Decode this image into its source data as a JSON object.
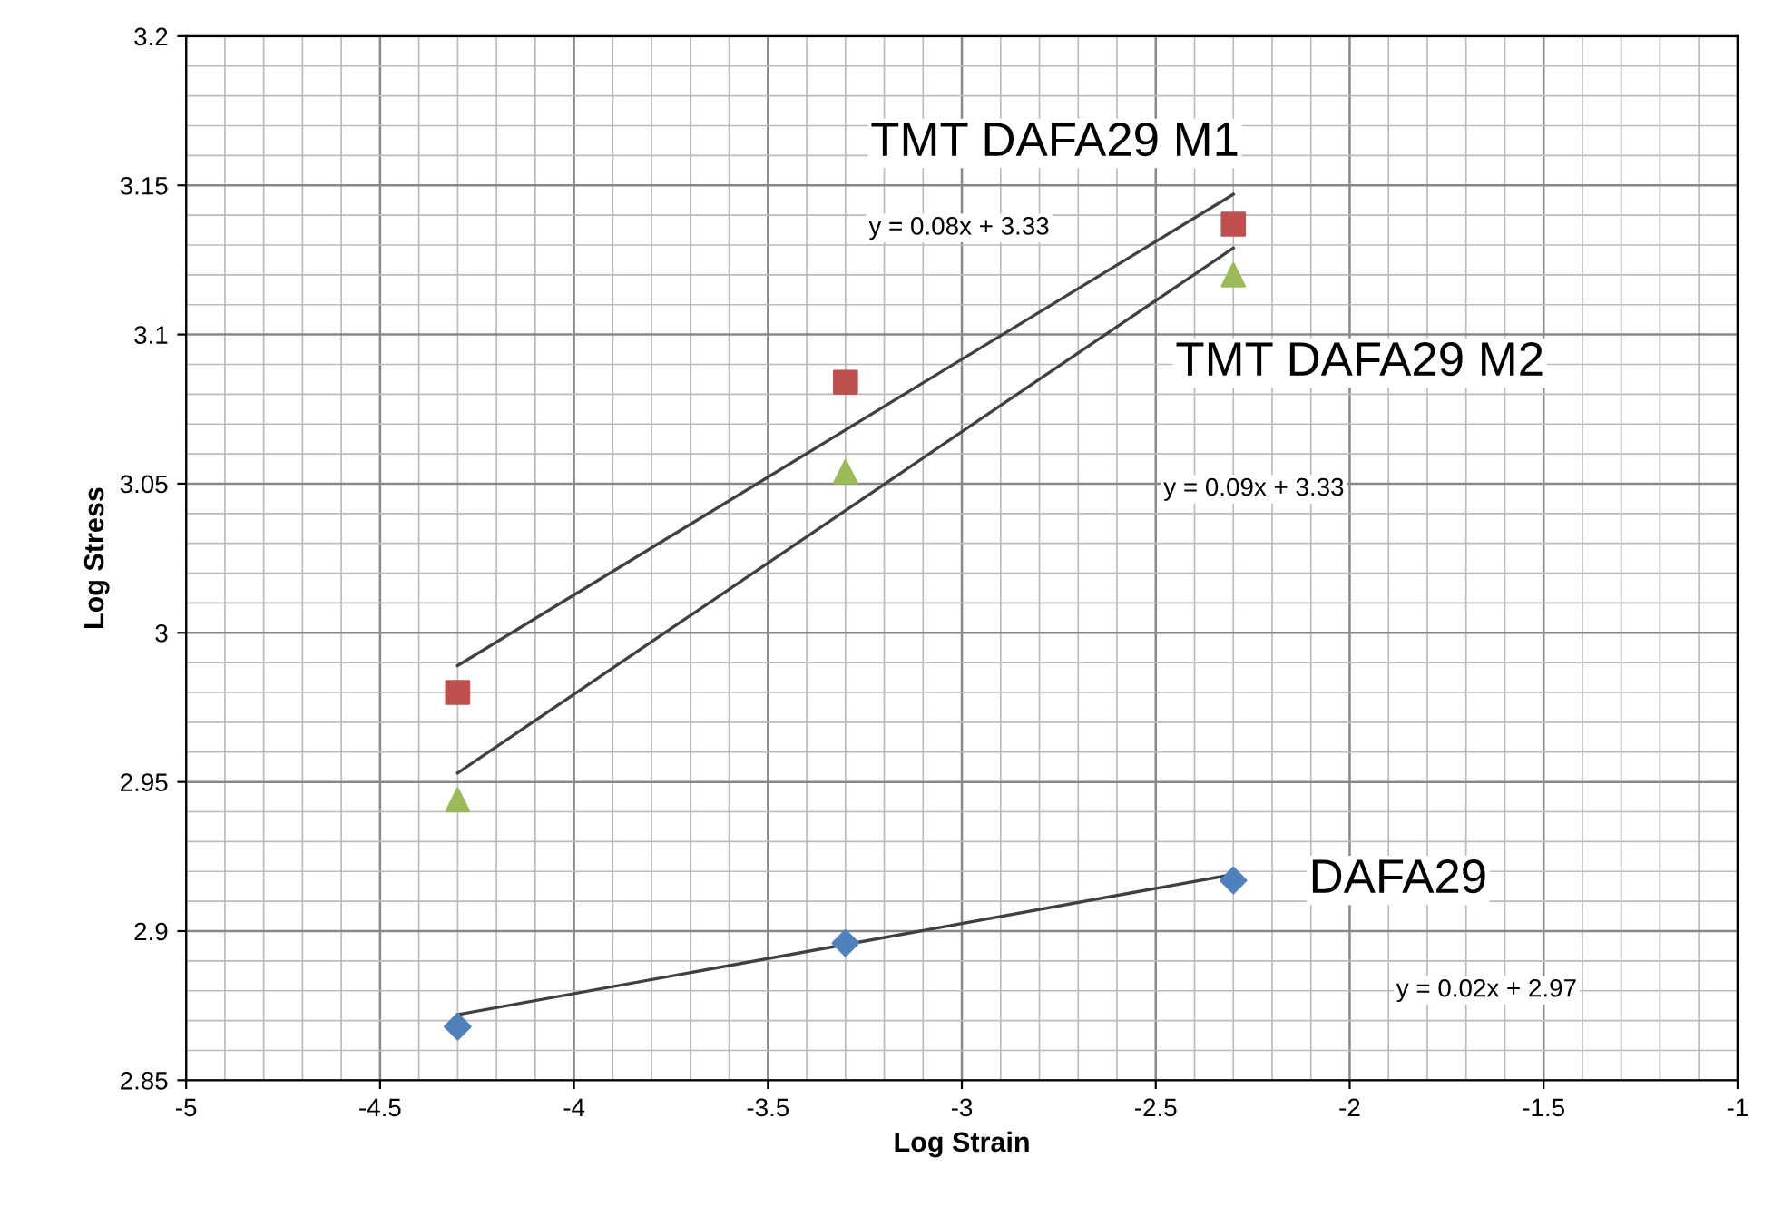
{
  "chart_data": {
    "type": "scatter",
    "xlabel": "Log Strain",
    "ylabel": "Log Stress",
    "xlim": [
      -5,
      -1
    ],
    "ylim": [
      2.85,
      3.2
    ],
    "xticks": [
      -5,
      -4.5,
      -4,
      -3.5,
      -3,
      -2.5,
      -2,
      -1.5,
      -1
    ],
    "yticks": [
      2.85,
      2.9,
      2.95,
      3,
      3.05,
      3.1,
      3.15,
      3.2
    ],
    "grid": true,
    "series": [
      {
        "name": "DAFA29",
        "color": "#4f81bd",
        "marker": "diamond",
        "x": [
          -4.3,
          -3.3,
          -2.3
        ],
        "values": [
          2.868,
          2.896,
          2.917
        ]
      },
      {
        "name": "TMT DAFA29 M1",
        "color": "#c0504d",
        "marker": "square",
        "x": [
          -4.3,
          -3.3,
          -2.3
        ],
        "values": [
          2.98,
          3.084,
          3.137
        ]
      },
      {
        "name": "TMT DAFA29 M2",
        "color": "#9bbb59",
        "marker": "triangle",
        "x": [
          -4.3,
          -3.3,
          -2.3
        ],
        "values": [
          2.944,
          3.054,
          3.12
        ]
      },
      {
        "type": "line",
        "color": "#404040",
        "x": [
          -4.3,
          -2.3
        ],
        "values": [
          2.872,
          2.919
        ]
      },
      {
        "type": "line",
        "color": "#404040",
        "x": [
          -4.3,
          -2.3
        ],
        "values": [
          2.989,
          3.147
        ]
      },
      {
        "type": "line",
        "color": "#404040",
        "x": [
          -4.3,
          -2.3
        ],
        "values": [
          2.953,
          3.129
        ]
      }
    ],
    "annotations": [
      "y = 0.02x + 2.97",
      "y = 0.08x + 3.33",
      "y = 0.09x + 3.33"
    ]
  }
}
